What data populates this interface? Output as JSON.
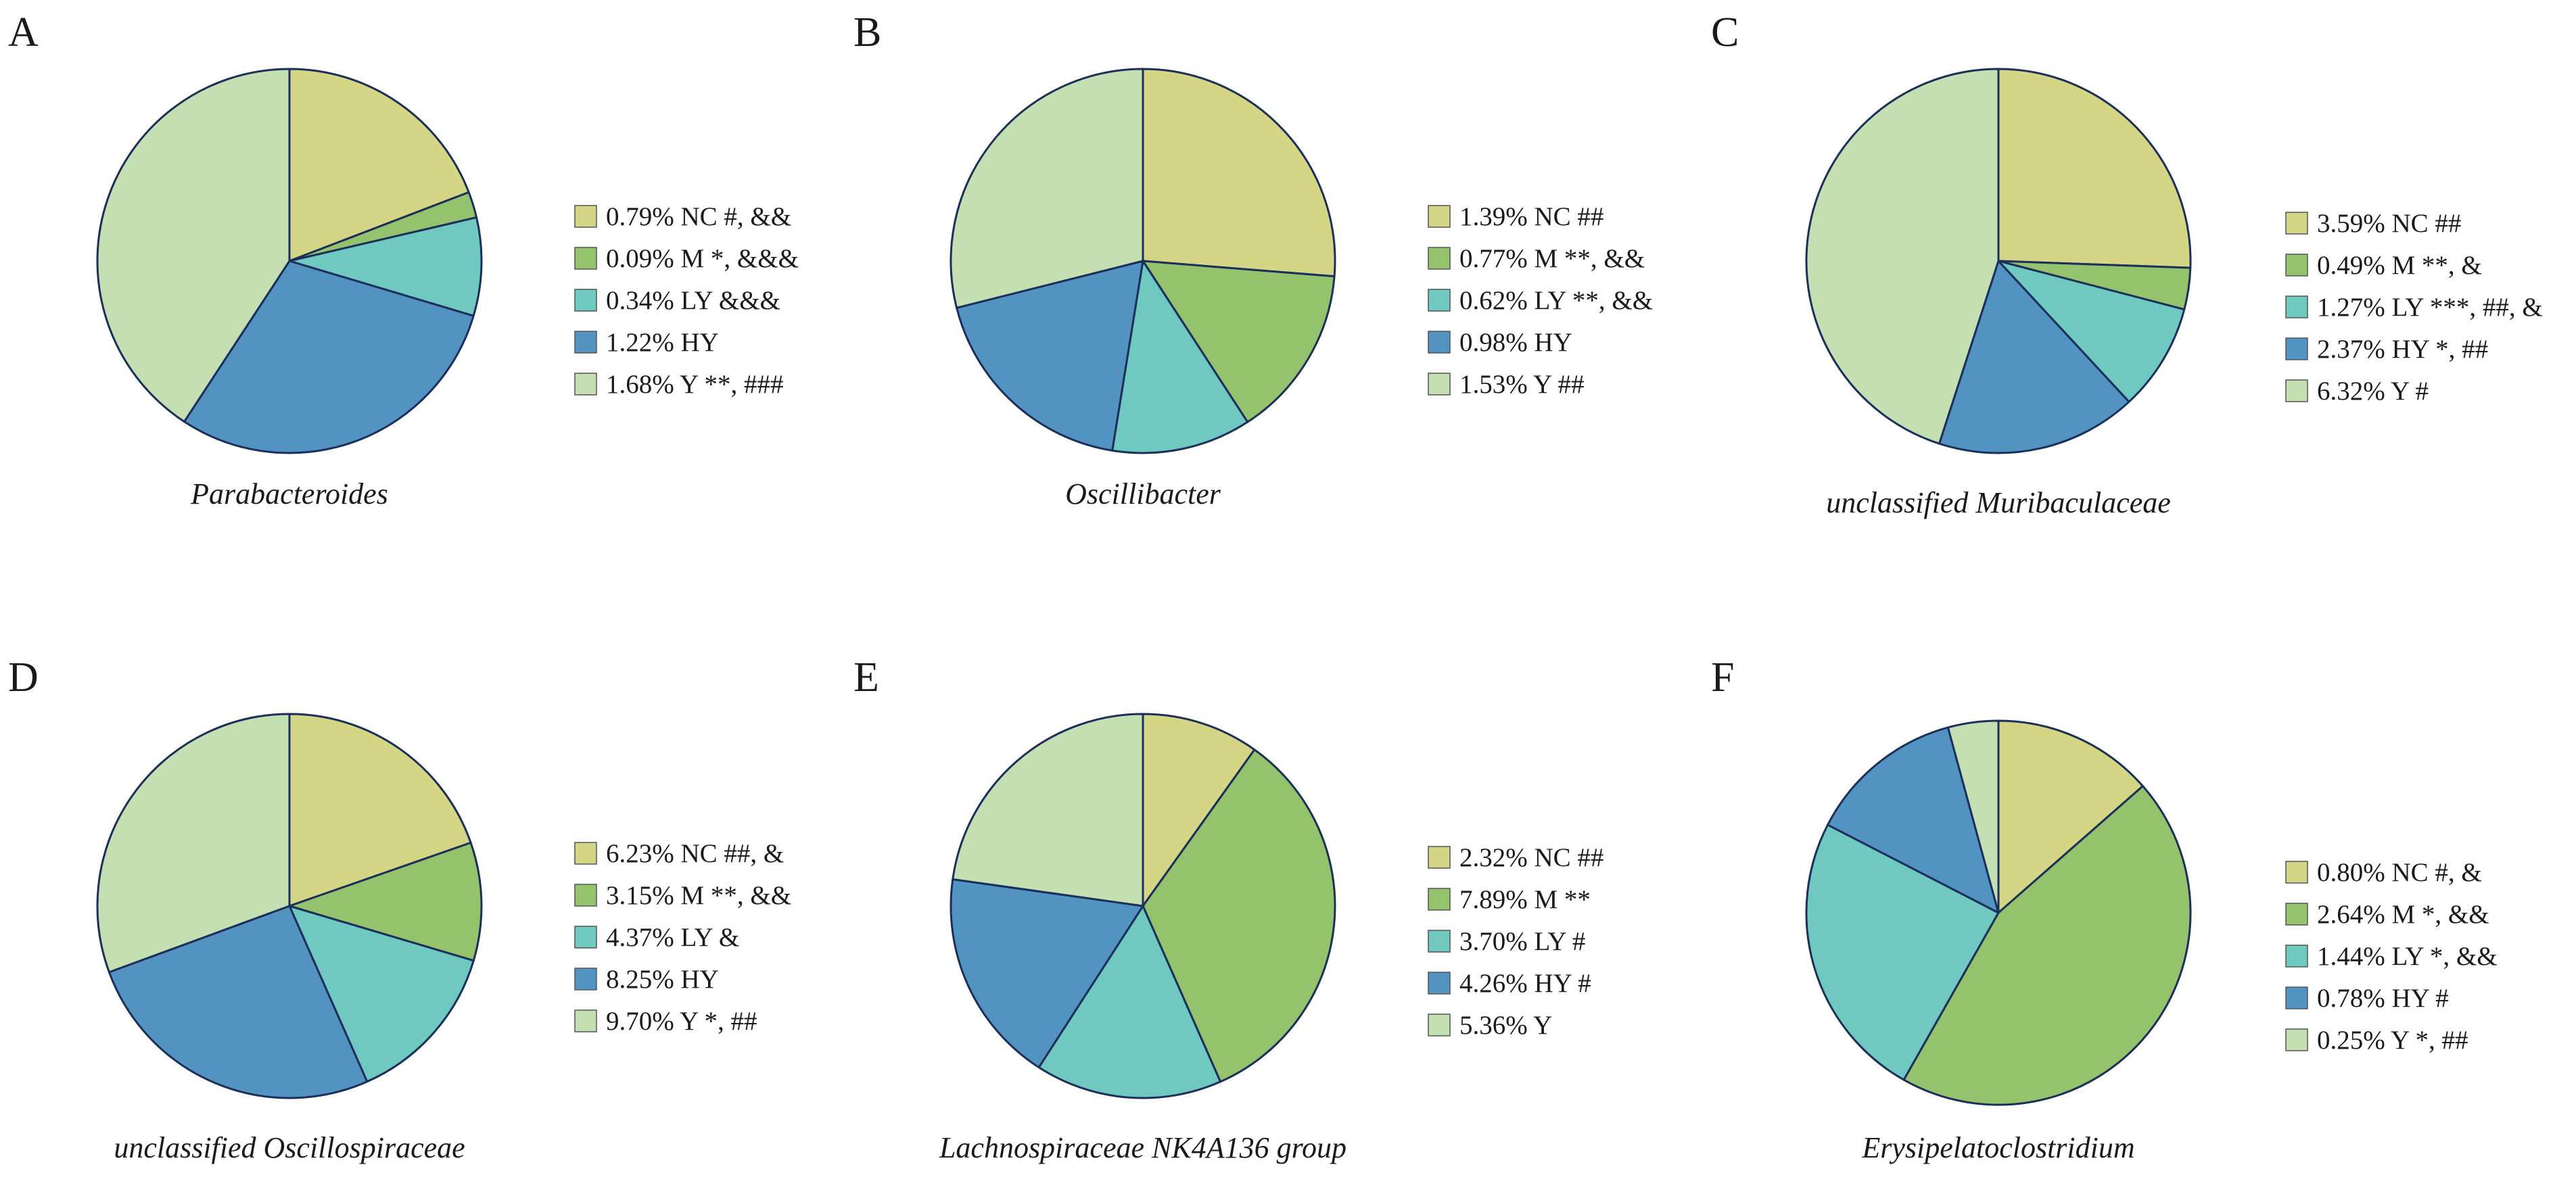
{
  "colors": {
    "NC": "#d4d585",
    "M": "#95c26c",
    "LY": "#70c9c0",
    "HY": "#5293c2",
    "Y": "#c4dfb2"
  },
  "chart_data": [
    {
      "type": "pie",
      "panel": "A",
      "title": "Parabacteroides",
      "labels": [
        "NC",
        "M",
        "LY",
        "HY",
        "Y"
      ],
      "values": [
        0.79,
        0.09,
        0.34,
        1.22,
        1.68
      ],
      "legend": [
        "0.79% NC #, &&",
        "0.09% M *, &&&",
        "0.34% LY &&&",
        "1.22% HY",
        "1.68% Y **, ###"
      ]
    },
    {
      "type": "pie",
      "panel": "B",
      "title": "Oscillibacter",
      "labels": [
        "NC",
        "M",
        "LY",
        "HY",
        "Y"
      ],
      "values": [
        1.39,
        0.77,
        0.62,
        0.98,
        1.53
      ],
      "legend": [
        "1.39% NC ##",
        "0.77% M **, &&",
        "0.62% LY **, &&",
        "0.98% HY",
        "1.53% Y ##"
      ]
    },
    {
      "type": "pie",
      "panel": "C",
      "title": "unclassified Muribaculaceae",
      "labels": [
        "NC",
        "M",
        "LY",
        "HY",
        "Y"
      ],
      "values": [
        3.59,
        0.49,
        1.27,
        2.37,
        6.32
      ],
      "legend": [
        "3.59% NC ##",
        "0.49% M **, &",
        "1.27% LY ***, ##, &",
        "2.37% HY *, ##",
        "6.32% Y #"
      ]
    },
    {
      "type": "pie",
      "panel": "D",
      "title": "unclassified Oscillospiraceae",
      "labels": [
        "NC",
        "M",
        "LY",
        "HY",
        "Y"
      ],
      "values": [
        6.23,
        3.15,
        4.37,
        8.25,
        9.7
      ],
      "legend": [
        "6.23% NC ##, &",
        "3.15% M **, &&",
        "4.37% LY &",
        "8.25% HY",
        "9.70% Y *, ##"
      ]
    },
    {
      "type": "pie",
      "panel": "E",
      "title": "Lachnospiraceae NK4A136 group",
      "labels": [
        "NC",
        "M",
        "LY",
        "HY",
        "Y"
      ],
      "values": [
        2.32,
        7.89,
        3.7,
        4.26,
        5.36
      ],
      "legend": [
        "2.32% NC ##",
        "7.89% M **",
        "3.70% LY #",
        "4.26% HY #",
        "5.36% Y"
      ]
    },
    {
      "type": "pie",
      "panel": "F",
      "title": "Erysipelatoclostridium",
      "labels": [
        "NC",
        "M",
        "LY",
        "HY",
        "Y"
      ],
      "values": [
        0.8,
        2.64,
        1.44,
        0.78,
        0.25
      ],
      "legend": [
        "0.80% NC #, &",
        "2.64% M *, &&",
        "1.44% LY *, &&",
        "0.78% HY #",
        "0.25% Y *, ##"
      ]
    }
  ]
}
